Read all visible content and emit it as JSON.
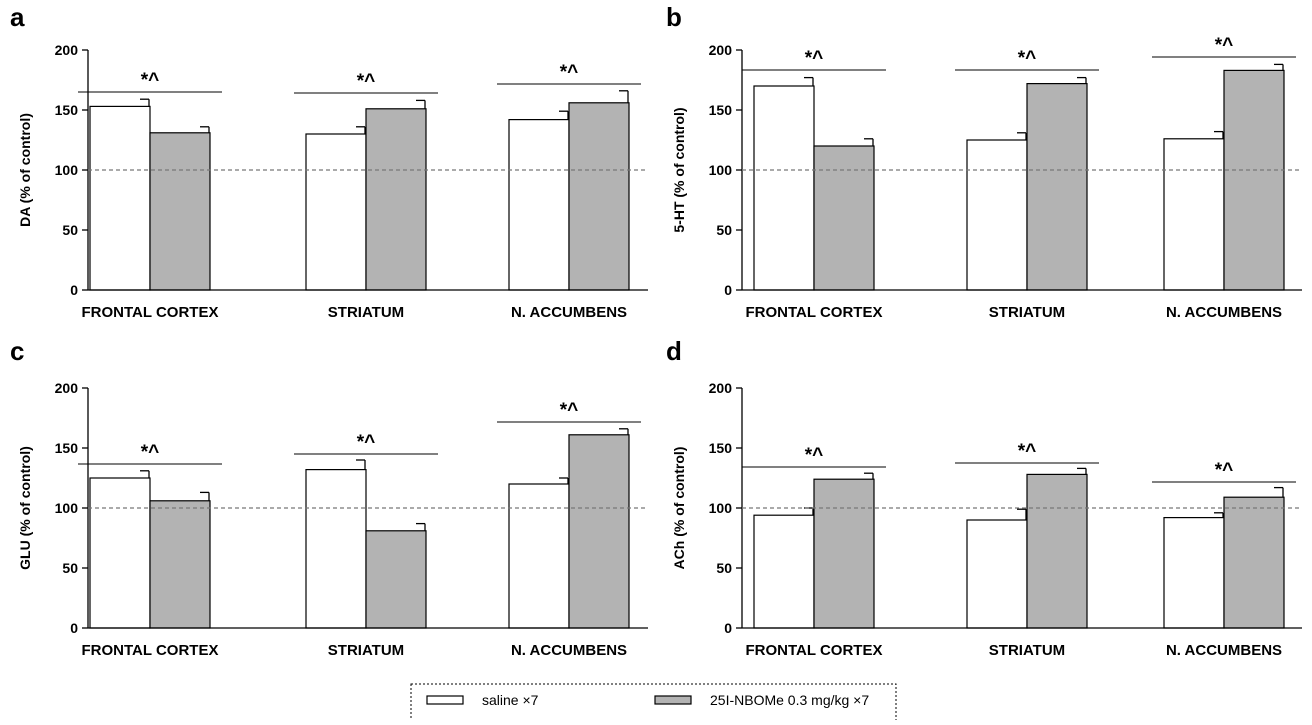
{
  "chart_data": [
    {
      "panel": "a",
      "type": "bar",
      "ylabel": "DA (% of control)",
      "ylim": [
        0,
        200
      ],
      "yticks": [
        0,
        50,
        100,
        150,
        200
      ],
      "reference_line": 100,
      "categories": [
        "FRONTAL CORTEX",
        "STRIATUM",
        "N. ACCUMBENS"
      ],
      "series": [
        {
          "name": "saline ×7",
          "values": [
            153,
            130,
            142
          ],
          "errors": [
            6,
            6,
            7
          ]
        },
        {
          "name": "25I-NBOMe 0.3 mg/kg ×7",
          "values": [
            131,
            151,
            156
          ],
          "errors": [
            5,
            7,
            10
          ]
        }
      ],
      "significance": [
        "*^",
        "*^",
        "*^"
      ]
    },
    {
      "panel": "b",
      "type": "bar",
      "ylabel": "5-HT (% of control)",
      "ylim": [
        0,
        200
      ],
      "yticks": [
        0,
        50,
        100,
        150,
        200
      ],
      "reference_line": 100,
      "categories": [
        "FRONTAL CORTEX",
        "STRIATUM",
        "N. ACCUMBENS"
      ],
      "series": [
        {
          "name": "saline ×7",
          "values": [
            170,
            125,
            126
          ],
          "errors": [
            7,
            6,
            6
          ]
        },
        {
          "name": "25I-NBOMe 0.3 mg/kg ×7",
          "values": [
            120,
            172,
            183
          ],
          "errors": [
            6,
            5,
            5
          ]
        }
      ],
      "significance": [
        "*^",
        "*^",
        "*^"
      ]
    },
    {
      "panel": "c",
      "type": "bar",
      "ylabel": "GLU (% of control)",
      "ylim": [
        0,
        200
      ],
      "yticks": [
        0,
        50,
        100,
        150,
        200
      ],
      "reference_line": 100,
      "categories": [
        "FRONTAL CORTEX",
        "STRIATUM",
        "N. ACCUMBENS"
      ],
      "series": [
        {
          "name": "saline ×7",
          "values": [
            125,
            132,
            120
          ],
          "errors": [
            6,
            8,
            5
          ]
        },
        {
          "name": "25I-NBOMe 0.3 mg/kg ×7",
          "values": [
            106,
            81,
            161
          ],
          "errors": [
            7,
            6,
            5
          ]
        }
      ],
      "significance": [
        "*^",
        "*^",
        "*^"
      ]
    },
    {
      "panel": "d",
      "type": "bar",
      "ylabel": "ACh (% of control)",
      "ylim": [
        0,
        200
      ],
      "yticks": [
        0,
        50,
        100,
        150,
        200
      ],
      "reference_line": 100,
      "categories": [
        "FRONTAL CORTEX",
        "STRIATUM",
        "N. ACCUMBENS"
      ],
      "series": [
        {
          "name": "saline ×7",
          "values": [
            94,
            90,
            92
          ],
          "errors": [
            6,
            9,
            4
          ]
        },
        {
          "name": "25I-NBOMe 0.3 mg/kg ×7",
          "values": [
            124,
            128,
            109
          ],
          "errors": [
            5,
            5,
            8
          ]
        }
      ],
      "significance": [
        "*^",
        "*^",
        "*^"
      ]
    }
  ],
  "legend": {
    "items": [
      {
        "label": "saline ×7",
        "color": "#ffffff"
      },
      {
        "label": "25I-NBOMe 0.3 mg/kg ×7",
        "color": "#b3b3b3"
      }
    ]
  },
  "colors": {
    "saline": "#ffffff",
    "drug": "#b3b3b3",
    "outline": "#000000",
    "reference": "#777777"
  }
}
